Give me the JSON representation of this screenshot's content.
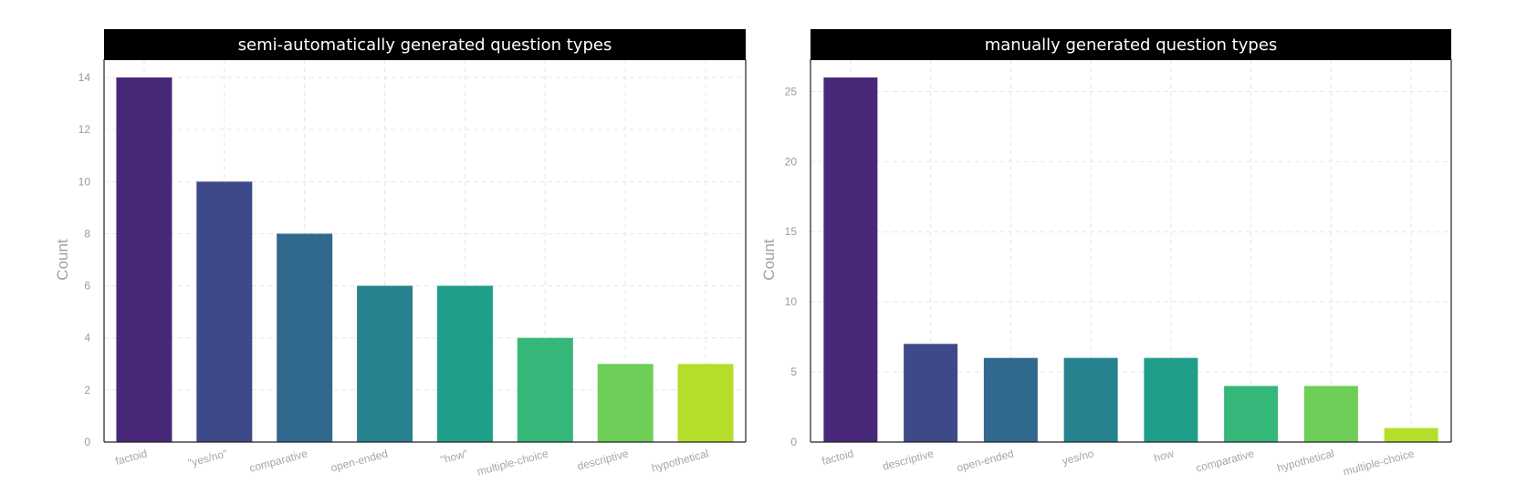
{
  "chart_data": [
    {
      "type": "bar",
      "title": "semi-automatically generated question types",
      "xlabel": "",
      "ylabel": "Count",
      "categories": [
        "factoid",
        "\"yes/no\"",
        "comparative",
        "open-ended",
        "\"how\"",
        "multiple-choice",
        "descriptive",
        "hypothetical"
      ],
      "values": [
        14,
        10,
        8,
        6,
        6,
        4,
        3,
        3
      ],
      "ylim": [
        0,
        14.7
      ],
      "yticks": [
        0,
        2,
        4,
        6,
        8,
        10,
        12,
        14
      ],
      "grid": true,
      "colors": [
        "#482878",
        "#3e4989",
        "#31688e",
        "#26828e",
        "#1f9e89",
        "#35b779",
        "#6ece58",
        "#b5de2b"
      ]
    },
    {
      "type": "bar",
      "title": "manually generated question types",
      "xlabel": "",
      "ylabel": "Count",
      "categories": [
        "factoid",
        "descriptive",
        "open-ended",
        "yes/no",
        "how",
        "comparative",
        "hypothetical",
        "multiple-choice"
      ],
      "values": [
        26,
        7,
        6,
        6,
        6,
        4,
        4,
        1
      ],
      "ylim": [
        0,
        27.3
      ],
      "yticks": [
        0,
        5,
        10,
        15,
        20,
        25
      ],
      "grid": true,
      "colors": [
        "#482878",
        "#3e4989",
        "#31688e",
        "#26828e",
        "#1f9e89",
        "#35b779",
        "#6ece58",
        "#b5de2b"
      ]
    }
  ]
}
